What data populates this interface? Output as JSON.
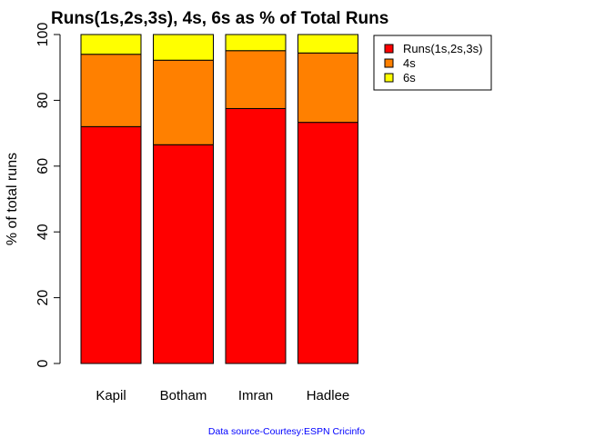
{
  "chart_data": {
    "type": "bar",
    "stacked": true,
    "title": "Runs(1s,2s,3s), 4s, 6s as % of Total Runs",
    "xlabel": "",
    "ylabel": "% of total runs",
    "ylim": [
      0,
      100
    ],
    "yticks": [
      0,
      20,
      40,
      60,
      80,
      100
    ],
    "categories": [
      "Kapil",
      "Botham",
      "Imran",
      "Hadlee"
    ],
    "series": [
      {
        "name": "Runs(1s,2s,3s)",
        "color": "#ff0000",
        "values": [
          72.0,
          66.5,
          77.5,
          73.3
        ]
      },
      {
        "name": "4s",
        "color": "#ff8000",
        "values": [
          22.0,
          25.7,
          17.6,
          21.1
        ]
      },
      {
        "name": "6s",
        "color": "#ffff00",
        "values": [
          6.0,
          7.8,
          4.9,
          5.6
        ]
      }
    ],
    "legend_position": "top-right",
    "grid": false,
    "caption": "Data source-Courtesy:ESPN Cricinfo"
  }
}
